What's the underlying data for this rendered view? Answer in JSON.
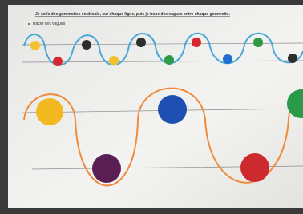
{
  "header": {
    "title": "Je colle des gommettes en décalé, sur chaque ligne, puis je trace des vagues entre chaque gommette.",
    "instruction": "Tracer des vagues"
  }
}
